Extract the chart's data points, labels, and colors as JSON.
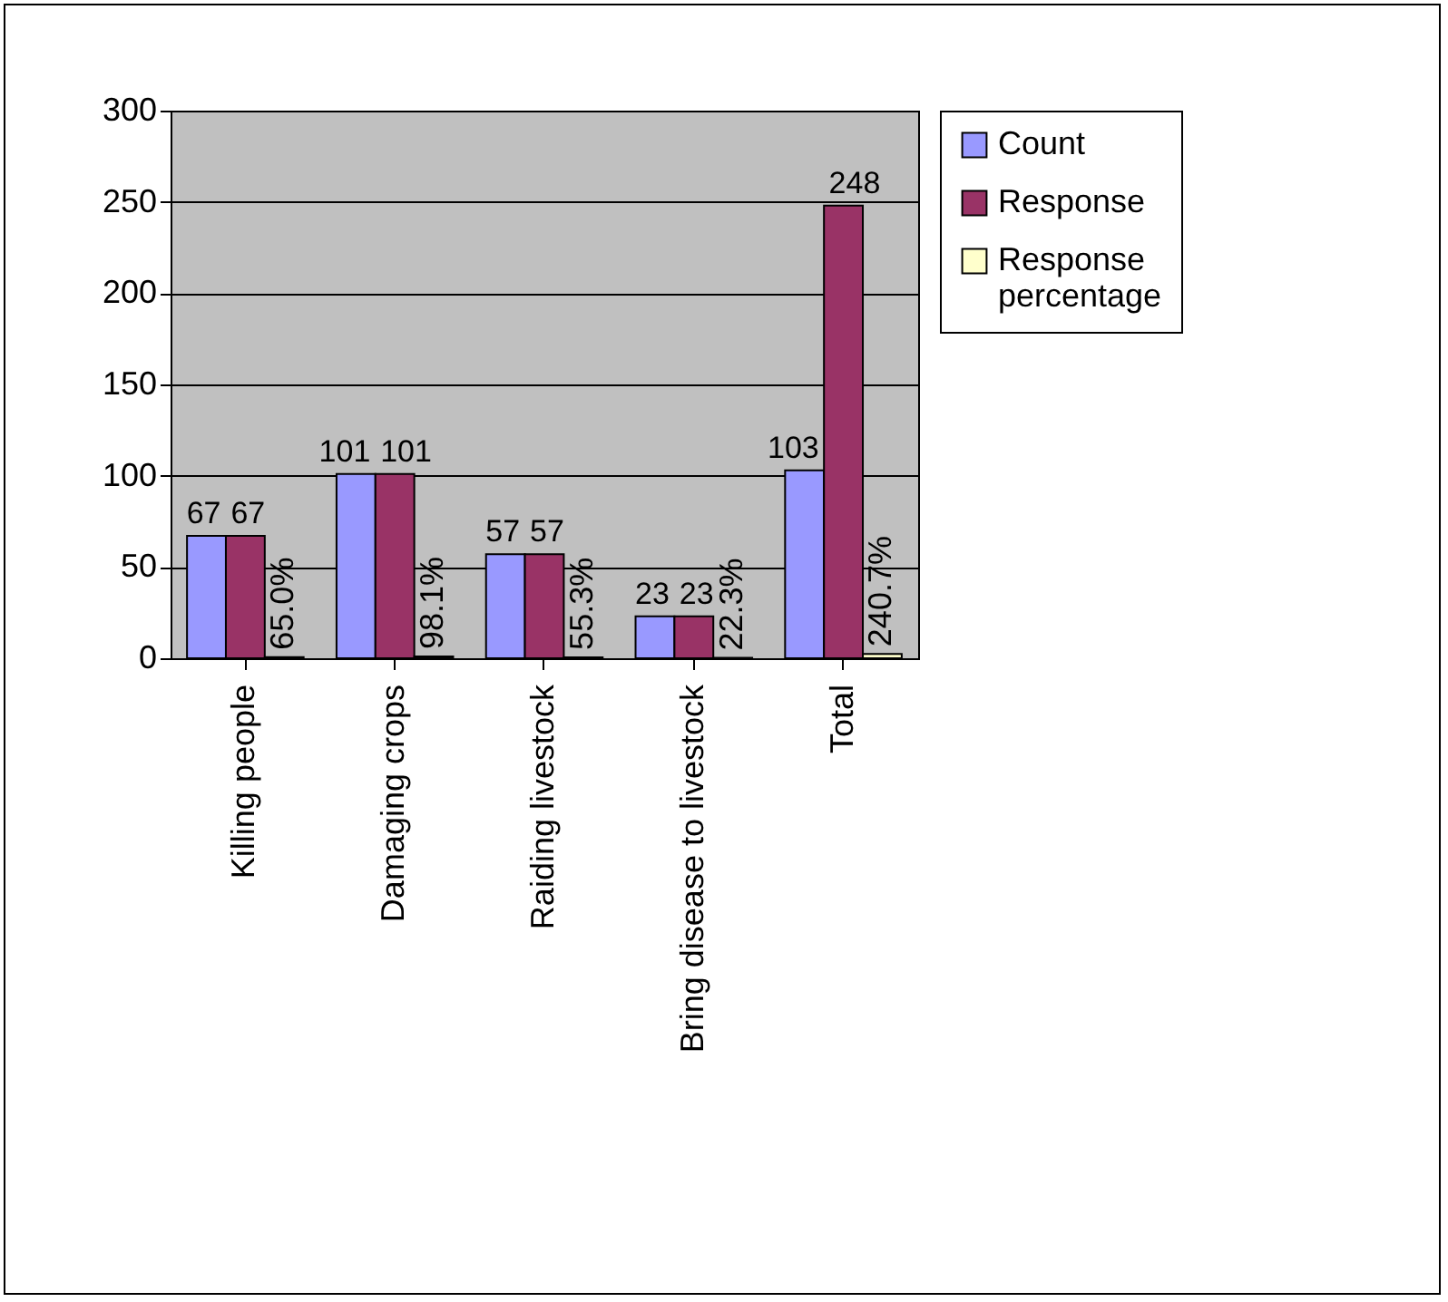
{
  "chart_data": {
    "type": "bar",
    "categories": [
      "Killing people",
      "Damaging crops",
      "Raiding livestock",
      "Bring disease to livestock",
      "Total"
    ],
    "series": [
      {
        "name": "Count",
        "color": "#9999ff",
        "values": [
          67,
          101,
          57,
          23,
          103
        ],
        "value_labels": [
          "67",
          "101",
          "57",
          "23",
          "103"
        ]
      },
      {
        "name": "Response",
        "color": "#993366",
        "values": [
          67,
          101,
          57,
          23,
          248
        ],
        "value_labels": [
          "67",
          "101",
          "57",
          "23",
          "248"
        ]
      },
      {
        "name": "Response percentage",
        "color": "#ffffcc",
        "values": [
          0.65,
          0.981,
          0.553,
          0.223,
          2.407
        ],
        "value_labels": [
          "65.0%",
          "98.1%",
          "55.3%",
          "22.3%",
          "240.7%"
        ]
      }
    ],
    "ylim": [
      0,
      300
    ],
    "yticks": [
      0,
      50,
      100,
      150,
      200,
      250,
      300
    ],
    "grid": "y",
    "legend": "right"
  }
}
